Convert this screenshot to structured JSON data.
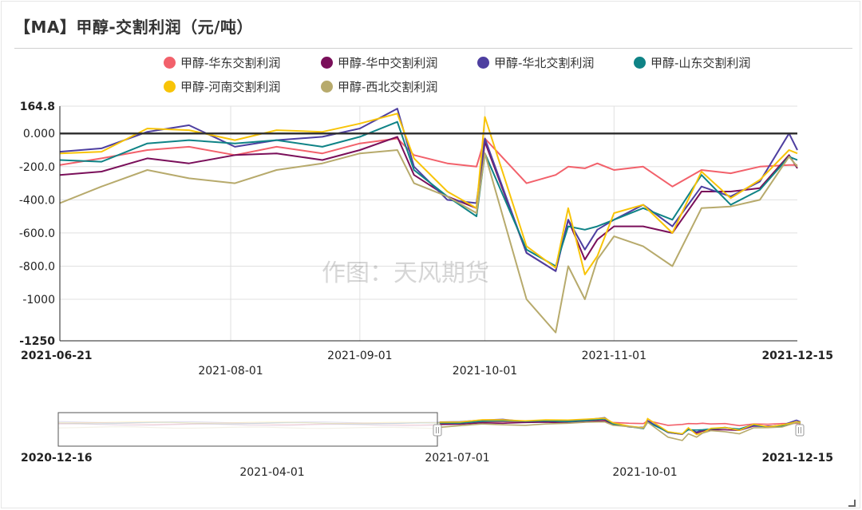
{
  "title": "【MA】甲醇-交割利润（元/吨）",
  "watermark": "作图：天风期货",
  "colors": {
    "axis": "#222222",
    "grid": "#e0e0e0",
    "zero_line": "#333333"
  },
  "legend": [
    {
      "name": "甲醇-华东交割利润",
      "color": "#f2616b"
    },
    {
      "name": "甲醇-华中交割利润",
      "color": "#7a0f5a"
    },
    {
      "name": "甲醇-华北交割利润",
      "color": "#4e3fa0"
    },
    {
      "name": "甲醇-山东交割利润",
      "color": "#0f8386"
    },
    {
      "name": "甲醇-河南交割利润",
      "color": "#f8c408"
    },
    {
      "name": "甲醇-西北交割利润",
      "color": "#b7aa6c"
    }
  ],
  "main_axis": {
    "y_ticks": [
      "164.8",
      "0.000",
      "-200.0",
      "-400.0",
      "-600.0",
      "-800.0",
      "-1000",
      "-1250"
    ],
    "x_ticks_upper": [
      "2021-06-21",
      "2021-09-01",
      "2021-11-01",
      "2021-12-15"
    ],
    "x_ticks_lower": [
      "2021-08-01",
      "2021-10-01"
    ]
  },
  "navigator": {
    "x_ticks_upper": [
      "2020-12-16",
      "2021-07-01",
      "2021-12-15"
    ],
    "x_ticks_lower": [
      "2021-04-01",
      "2021-10-01"
    ],
    "handles": [
      "left-handle",
      "right-handle"
    ]
  },
  "chart_data": {
    "type": "line",
    "title": "【MA】甲醇-交割利润（元/吨）",
    "unit": "元/吨",
    "ylim": [
      -1250,
      164.8
    ],
    "xlim": [
      "2021-06-21",
      "2021-12-15"
    ],
    "grid": true,
    "legend_position": "top",
    "x": [
      "2021-06-21",
      "2021-07-01",
      "2021-07-12",
      "2021-07-22",
      "2021-08-02",
      "2021-08-12",
      "2021-08-23",
      "2021-09-01",
      "2021-09-10",
      "2021-09-14",
      "2021-09-22",
      "2021-09-29",
      "2021-10-01",
      "2021-10-11",
      "2021-10-18",
      "2021-10-21",
      "2021-10-25",
      "2021-10-28",
      "2021-11-01",
      "2021-11-08",
      "2021-11-15",
      "2021-11-22",
      "2021-11-29",
      "2021-12-06",
      "2021-12-13",
      "2021-12-15"
    ],
    "series": [
      {
        "name": "甲醇-华东交割利润",
        "values": [
          -190,
          -150,
          -100,
          -80,
          -130,
          -80,
          -120,
          -60,
          -30,
          -130,
          -180,
          -200,
          -30,
          -300,
          -250,
          -200,
          -210,
          -180,
          -220,
          -200,
          -320,
          -220,
          -240,
          -200,
          -190,
          -190
        ]
      },
      {
        "name": "甲醇-华中交割利润",
        "values": [
          -250,
          -230,
          -150,
          -180,
          -130,
          -120,
          -160,
          -100,
          -20,
          -250,
          -380,
          -450,
          -50,
          -720,
          -830,
          -520,
          -760,
          -640,
          -560,
          -560,
          -600,
          -350,
          -350,
          -330,
          -130,
          -210
        ]
      },
      {
        "name": "甲醇-华北交割利润",
        "values": [
          -110,
          -90,
          10,
          50,
          -80,
          -40,
          -20,
          30,
          150,
          -200,
          -400,
          -420,
          -30,
          -720,
          -830,
          -520,
          -700,
          -580,
          -520,
          -430,
          -560,
          -320,
          -380,
          -290,
          0,
          -100
        ]
      },
      {
        "name": "甲醇-山东交割利润",
        "values": [
          -160,
          -170,
          -60,
          -40,
          -60,
          -40,
          -80,
          -20,
          70,
          -220,
          -380,
          -500,
          -120,
          -700,
          -800,
          -560,
          -580,
          -560,
          -520,
          -450,
          -520,
          -250,
          -430,
          -340,
          -140,
          -160
        ]
      },
      {
        "name": "甲醇-河南交割利润",
        "values": [
          -120,
          -110,
          30,
          20,
          -40,
          20,
          10,
          60,
          120,
          -150,
          -350,
          -450,
          100,
          -680,
          -810,
          -450,
          -850,
          -740,
          -480,
          -430,
          -600,
          -230,
          -390,
          -280,
          -100,
          -120
        ]
      },
      {
        "name": "甲醇-西北交割利润",
        "values": [
          -420,
          -320,
          -220,
          -270,
          -300,
          -220,
          -180,
          -120,
          -100,
          -300,
          -380,
          -480,
          -120,
          -1000,
          -1200,
          -800,
          -1000,
          -760,
          -620,
          -680,
          -800,
          -450,
          -440,
          -400,
          -140,
          -200
        ]
      }
    ]
  }
}
